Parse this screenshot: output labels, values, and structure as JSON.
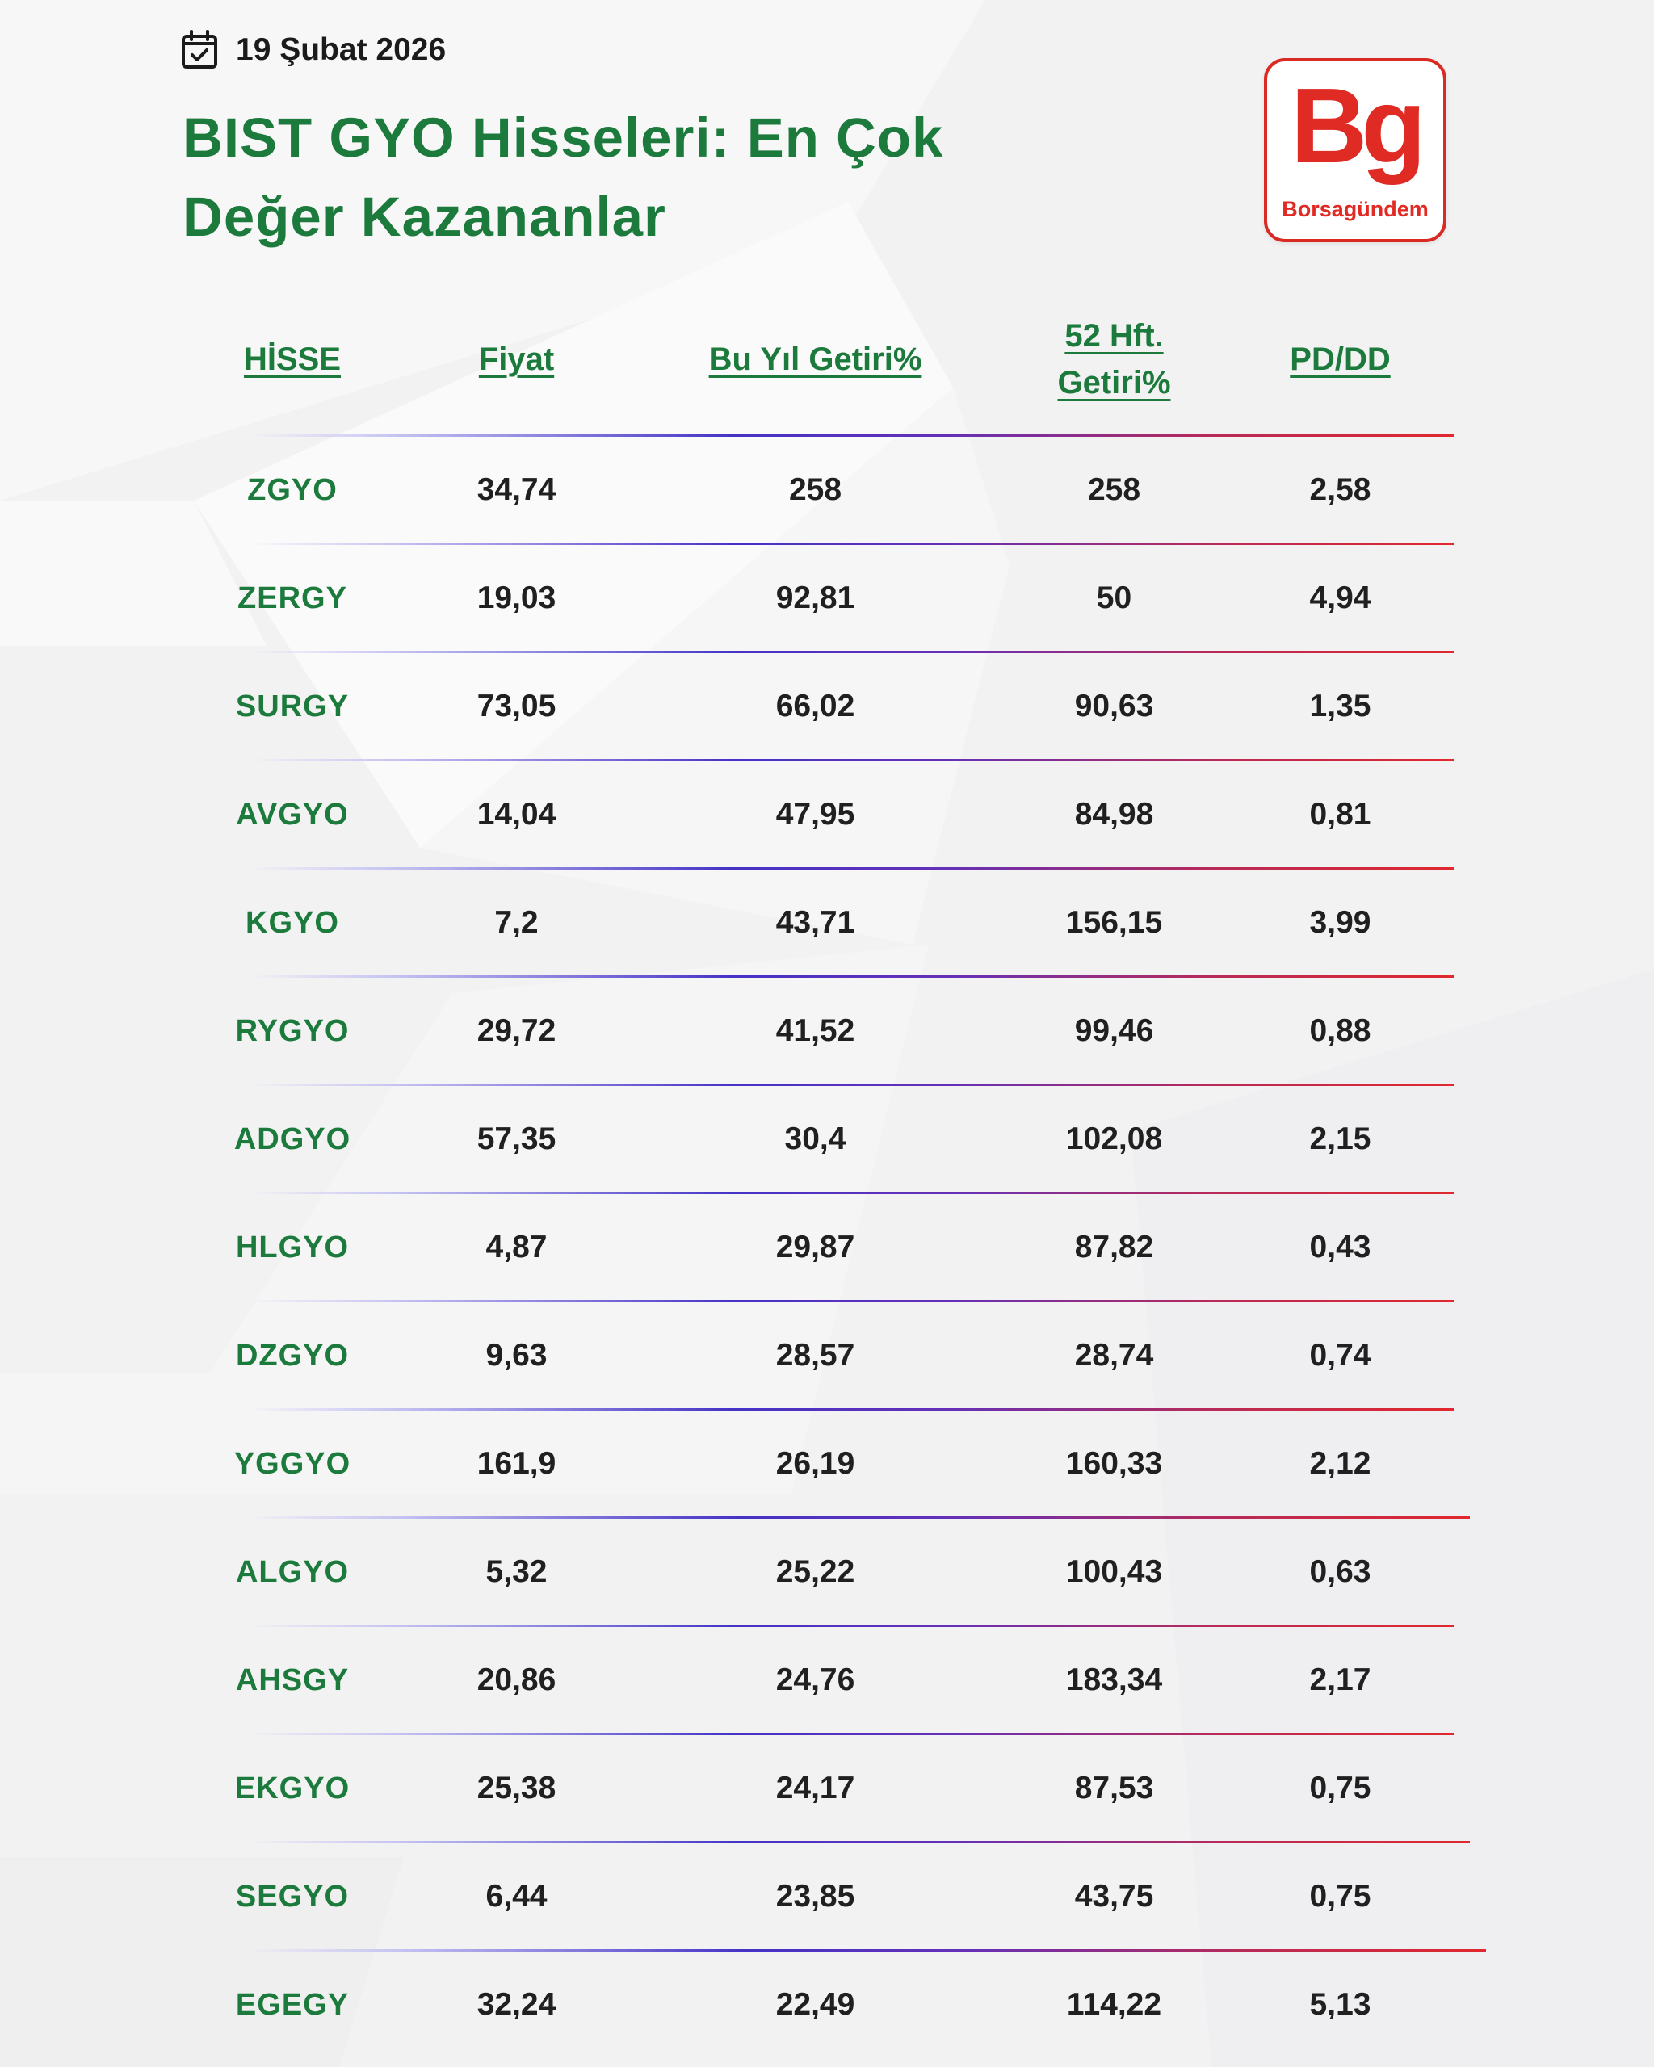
{
  "header": {
    "date": "19 Şubat 2026",
    "title": "BIST GYO Hisseleri: En Çok Değer Kazananlar"
  },
  "logo": {
    "mark": "Bg",
    "name": "Borsagündem",
    "brand_color": "#e02a24"
  },
  "colors": {
    "title_green": "#1c7a3c",
    "value_text": "#202020",
    "rule_gradient": [
      "#c6c3f2",
      "#4533c6",
      "#6530b8",
      "#e0282e"
    ]
  },
  "table": {
    "columns": [
      "HİSSE",
      "Fiyat",
      "Bu Yıl Getiri%",
      "52 Hft. Getiri%",
      "PD/DD"
    ],
    "rows": [
      [
        "ZGYO",
        "34,74",
        "258",
        "258",
        "2,58"
      ],
      [
        "ZERGY",
        "19,03",
        "92,81",
        "50",
        "4,94"
      ],
      [
        "SURGY",
        "73,05",
        "66,02",
        "90,63",
        "1,35"
      ],
      [
        "AVGYO",
        "14,04",
        "47,95",
        "84,98",
        "0,81"
      ],
      [
        "KGYO",
        "7,2",
        "43,71",
        "156,15",
        "3,99"
      ],
      [
        "RYGYO",
        "29,72",
        "41,52",
        "99,46",
        "0,88"
      ],
      [
        "ADGYO",
        "57,35",
        "30,4",
        "102,08",
        "2,15"
      ],
      [
        "HLGYO",
        "4,87",
        "29,87",
        "87,82",
        "0,43"
      ],
      [
        "DZGYO",
        "9,63",
        "28,57",
        "28,74",
        "0,74"
      ],
      [
        "YGGYO",
        "161,9",
        "26,19",
        "160,33",
        "2,12"
      ],
      [
        "ALGYO",
        "5,32",
        "25,22",
        "100,43",
        "0,63"
      ],
      [
        "AHSGY",
        "20,86",
        "24,76",
        "183,34",
        "2,17"
      ],
      [
        "EKGYO",
        "25,38",
        "24,17",
        "87,53",
        "0,75"
      ],
      [
        "SEGYO",
        "6,44",
        "23,85",
        "43,75",
        "0,75"
      ],
      [
        "EGEGY",
        "32,24",
        "22,49",
        "114,22",
        "5,13"
      ]
    ]
  }
}
